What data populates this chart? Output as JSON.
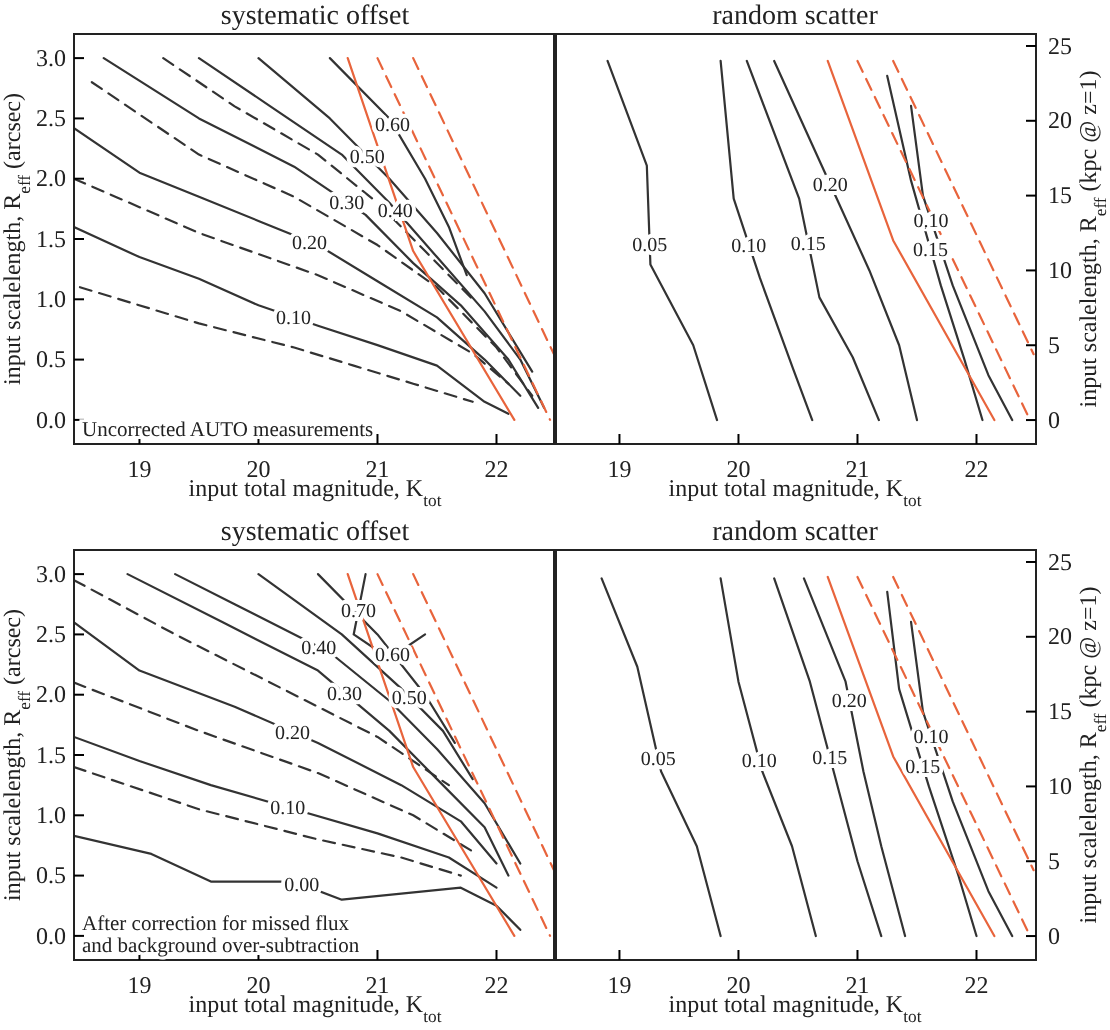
{
  "chart_data": [
    {
      "type": "line",
      "title": "systematic offset",
      "xlabel": "input total magnitude, K$_{tot}$",
      "ylabel": "input scalelength, R$_{eff}$ (arcsec)",
      "xlim": [
        18.45,
        22.5
      ],
      "xticks": [
        19,
        20,
        21,
        22
      ],
      "ylim": [
        -0.2,
        3.2
      ],
      "yticks": [
        {
          "value": 0,
          "label": "0.0"
        },
        {
          "value": 0.5,
          "label": "0.5"
        },
        {
          "value": 1,
          "label": "1.0"
        },
        {
          "value": 1.5,
          "label": "1.5"
        },
        {
          "value": 2,
          "label": "2.0"
        },
        {
          "value": 2.5,
          "label": "2.5"
        },
        {
          "value": 3,
          "label": "3.0"
        }
      ],
      "annotations": [
        "Uncorrected AUTO measurements"
      ],
      "series": [
        {
          "color": "#333333",
          "line_style": "dashed",
          "x": [
            18.5,
            19.5,
            20.3,
            20.8,
            21.3,
            21.8
          ],
          "values": [
            1.1,
            0.8,
            0.6,
            0.45,
            0.3,
            0.15
          ]
        },
        {
          "name": "0.10",
          "color": "#333333",
          "line_style": "solid",
          "x": [
            18.45,
            19.0,
            19.5,
            20.0,
            20.5,
            21.0,
            21.5,
            21.9,
            22.1
          ],
          "values": [
            1.6,
            1.35,
            1.17,
            0.95,
            0.78,
            0.62,
            0.45,
            0.15,
            0.05
          ]
        },
        {
          "color": "#333333",
          "line_style": "dashed",
          "x": [
            18.45,
            19.5,
            20.5,
            21.2,
            21.8,
            22.1
          ],
          "values": [
            2.0,
            1.55,
            1.2,
            0.9,
            0.55,
            0.3
          ]
        },
        {
          "name": "0.20",
          "color": "#333333",
          "line_style": "solid",
          "x": [
            18.45,
            19.0,
            19.5,
            20.0,
            20.5,
            21.0,
            21.5,
            21.9,
            22.2
          ],
          "values": [
            2.42,
            2.05,
            1.85,
            1.65,
            1.45,
            1.15,
            0.85,
            0.5,
            0.2
          ]
        },
        {
          "color": "#333333",
          "line_style": "dashed",
          "x": [
            18.6,
            19.5,
            20.3,
            21.0,
            21.5,
            22.0,
            22.3
          ],
          "values": [
            2.8,
            2.2,
            1.85,
            1.45,
            1.1,
            0.6,
            0.2
          ]
        },
        {
          "name": "0.30",
          "color": "#333333",
          "line_style": "solid",
          "x": [
            18.7,
            19.5,
            20.3,
            20.9,
            21.3,
            21.7,
            22.1,
            22.35
          ],
          "values": [
            3.0,
            2.5,
            2.1,
            1.7,
            1.3,
            0.95,
            0.5,
            0.1
          ]
        },
        {
          "color": "#333333",
          "line_style": "dashed",
          "x": [
            19.2,
            19.8,
            20.5,
            21.0,
            21.4,
            21.8
          ],
          "values": [
            3.0,
            2.6,
            2.2,
            1.8,
            1.4,
            1.0
          ]
        },
        {
          "name": "0.40",
          "color": "#333333",
          "line_style": "solid",
          "x": [
            19.5,
            20.1,
            20.7,
            21.1,
            21.5,
            21.9,
            22.2,
            22.4
          ],
          "values": [
            3.0,
            2.6,
            2.2,
            1.8,
            1.35,
            0.9,
            0.5,
            0.1
          ]
        },
        {
          "name": "0.50",
          "color": "#333333",
          "line_style": "solid",
          "x": [
            20.0,
            20.6,
            21.1,
            21.5,
            21.9,
            22.3
          ],
          "values": [
            3.0,
            2.5,
            2.0,
            1.55,
            1.05,
            0.4
          ]
        },
        {
          "name": "0.60",
          "color": "#333333",
          "line_style": "solid",
          "x": [
            20.6,
            21.1,
            21.4,
            21.6,
            21.75
          ],
          "values": [
            3.0,
            2.5,
            2.0,
            1.6,
            1.2
          ]
        },
        {
          "color": "#e8643c",
          "line_style": "solid",
          "x": [
            20.75,
            21.3,
            22.15
          ],
          "values": [
            3.0,
            1.4,
            0.0
          ]
        },
        {
          "color": "#e8643c",
          "line_style": "dashed",
          "x": [
            21.0,
            22.45
          ],
          "values": [
            3.0,
            0.0
          ]
        },
        {
          "color": "#e8643c",
          "line_style": "dashed",
          "x": [
            21.3,
            22.48
          ],
          "values": [
            3.0,
            0.55
          ]
        }
      ]
    },
    {
      "type": "line",
      "title": "random scatter",
      "xlabel": "input total magnitude, K$_{tot}$",
      "y2label": "input scalelength, R$_{eff}$ (kpc @ z=1)",
      "xlim": [
        18.45,
        22.5
      ],
      "xticks": [
        19,
        20,
        21,
        22
      ],
      "y2lim": [
        -1.6,
        25.8
      ],
      "y2ticks": [
        0,
        5,
        10,
        15,
        20,
        25
      ],
      "series": [
        {
          "name": "0.05",
          "color": "#333333",
          "line_style": "solid",
          "axis": "y2",
          "x": [
            18.9,
            19.23,
            19.26,
            19.62,
            19.82
          ],
          "values": [
            24,
            17,
            10.4,
            5,
            0
          ]
        },
        {
          "name": "0.10",
          "color": "#333333",
          "line_style": "solid",
          "axis": "y2",
          "x": [
            19.85,
            19.96,
            20.18,
            20.46,
            20.62
          ],
          "values": [
            24,
            14.8,
            9.5,
            3.4,
            0
          ]
        },
        {
          "name": "0.15",
          "color": "#333333",
          "line_style": "solid",
          "axis": "y2",
          "x": [
            20.07,
            20.51,
            20.68,
            20.96,
            21.18
          ],
          "values": [
            24,
            14.8,
            8.2,
            4.2,
            0
          ]
        },
        {
          "name": "0.20",
          "color": "#333333",
          "line_style": "solid",
          "axis": "y2",
          "x": [
            20.3,
            20.7,
            21.1,
            21.35,
            21.5
          ],
          "values": [
            24,
            17,
            10,
            5,
            0
          ]
        },
        {
          "name": "0.15",
          "color": "#333333",
          "line_style": "solid",
          "axis": "y2",
          "x": [
            21.25,
            21.45,
            21.7,
            21.9,
            22.05
          ],
          "values": [
            23,
            16,
            9,
            4,
            0
          ]
        },
        {
          "name": "0.10",
          "color": "#333333",
          "line_style": "solid",
          "axis": "y2",
          "x": [
            21.45,
            21.55,
            21.8,
            22.1,
            22.3
          ],
          "values": [
            21,
            15,
            9,
            3,
            0
          ]
        },
        {
          "color": "#e8643c",
          "line_style": "solid",
          "axis": "y2",
          "x": [
            20.75,
            21.3,
            22.15
          ],
          "values": [
            24,
            12,
            0
          ]
        },
        {
          "color": "#e8643c",
          "line_style": "dashed",
          "axis": "y2",
          "x": [
            21.0,
            22.45
          ],
          "values": [
            24,
            0
          ]
        },
        {
          "color": "#e8643c",
          "line_style": "dashed",
          "axis": "y2",
          "x": [
            21.3,
            22.48
          ],
          "values": [
            24,
            4.4
          ]
        }
      ]
    },
    {
      "type": "line",
      "title": "systematic offset",
      "xlabel": "input total magnitude, K$_{tot}$",
      "ylabel": "input scalelength, R$_{eff}$ (arcsec)",
      "xlim": [
        18.45,
        22.5
      ],
      "xticks": [
        19,
        20,
        21,
        22
      ],
      "ylim": [
        -0.2,
        3.2
      ],
      "yticks": [
        {
          "value": 0,
          "label": "0.0"
        },
        {
          "value": 0.5,
          "label": "0.5"
        },
        {
          "value": 1,
          "label": "1.0"
        },
        {
          "value": 1.5,
          "label": "1.5"
        },
        {
          "value": 2,
          "label": "2.0"
        },
        {
          "value": 2.5,
          "label": "2.5"
        },
        {
          "value": 3,
          "label": "3.0"
        }
      ],
      "annotations": [
        "After correction for missed flux\nand background over-subtraction"
      ],
      "series": [
        {
          "name": "0.00",
          "color": "#333333",
          "line_style": "solid",
          "x": [
            18.45,
            19.1,
            19.6,
            20.3,
            20.7,
            21.2,
            21.7,
            22.0,
            22.2
          ],
          "values": [
            0.83,
            0.68,
            0.45,
            0.45,
            0.3,
            0.35,
            0.4,
            0.25,
            0.05
          ]
        },
        {
          "color": "#333333",
          "line_style": "dashed",
          "x": [
            18.45,
            19.5,
            20.5,
            21.2,
            21.7
          ],
          "values": [
            1.4,
            1.05,
            0.8,
            0.65,
            0.5
          ]
        },
        {
          "name": "0.10",
          "color": "#333333",
          "line_style": "solid",
          "x": [
            18.45,
            19.0,
            19.6,
            20.3,
            21.0,
            21.6,
            22.0
          ],
          "values": [
            1.65,
            1.45,
            1.25,
            1.05,
            0.85,
            0.65,
            0.4
          ]
        },
        {
          "color": "#333333",
          "line_style": "dashed",
          "x": [
            18.45,
            19.5,
            20.5,
            21.3,
            21.8
          ],
          "values": [
            2.1,
            1.7,
            1.35,
            1.0,
            0.7
          ]
        },
        {
          "name": "0.20",
          "color": "#333333",
          "line_style": "solid",
          "x": [
            18.45,
            19.0,
            19.8,
            20.5,
            21.2,
            21.7,
            22.0
          ],
          "values": [
            2.6,
            2.2,
            1.9,
            1.6,
            1.25,
            0.95,
            0.6
          ]
        },
        {
          "color": "#333333",
          "line_style": "dashed",
          "x": [
            18.45,
            19.3,
            20.2,
            21.0,
            21.6
          ],
          "values": [
            2.95,
            2.5,
            2.05,
            1.65,
            1.25
          ]
        },
        {
          "name": "0.30",
          "color": "#333333",
          "line_style": "solid",
          "x": [
            18.9,
            19.7,
            20.5,
            21.1,
            21.5,
            21.9,
            22.1
          ],
          "values": [
            3.0,
            2.6,
            2.2,
            1.7,
            1.3,
            0.9,
            0.5
          ]
        },
        {
          "name": "0.40",
          "color": "#333333",
          "line_style": "solid",
          "x": [
            19.3,
            19.8,
            20.6,
            21.1,
            21.5,
            21.9,
            22.2
          ],
          "values": [
            3.0,
            2.75,
            2.35,
            1.95,
            1.55,
            1.1,
            0.6
          ]
        },
        {
          "name": "0.50",
          "color": "#333333",
          "line_style": "solid",
          "x": [
            20.0,
            20.7,
            21.2,
            21.55,
            21.8
          ],
          "values": [
            3.0,
            2.5,
            2.05,
            1.7,
            1.3
          ]
        },
        {
          "name": "0.60",
          "color": "#333333",
          "line_style": "solid",
          "x": [
            20.5,
            21.0,
            21.4,
            21.65
          ],
          "values": [
            3.0,
            2.5,
            2.0,
            1.6
          ]
        },
        {
          "name": "0.70",
          "color": "#333333",
          "line_style": "solid",
          "x": [
            20.9,
            20.8,
            21.1,
            21.4
          ],
          "values": [
            3.0,
            2.5,
            2.3,
            2.5
          ]
        },
        {
          "color": "#e8643c",
          "line_style": "solid",
          "x": [
            20.75,
            21.3,
            22.15
          ],
          "values": [
            3.0,
            1.4,
            0.0
          ]
        },
        {
          "color": "#e8643c",
          "line_style": "dashed",
          "x": [
            21.0,
            22.45
          ],
          "values": [
            3.0,
            0.0
          ]
        },
        {
          "color": "#e8643c",
          "line_style": "dashed",
          "x": [
            21.3,
            22.48
          ],
          "values": [
            3.0,
            0.55
          ]
        }
      ]
    },
    {
      "type": "line",
      "title": "random scatter",
      "xlabel": "input total magnitude, K$_{tot}$",
      "y2label": "input scalelength, R$_{eff}$ (kpc @ z=1)",
      "xlim": [
        18.45,
        22.5
      ],
      "xticks": [
        19,
        20,
        21,
        22
      ],
      "y2lim": [
        -1.6,
        25.8
      ],
      "y2ticks": [
        0,
        5,
        10,
        15,
        20,
        25
      ],
      "series": [
        {
          "name": "0.05",
          "color": "#333333",
          "line_style": "solid",
          "axis": "y2",
          "x": [
            18.85,
            19.15,
            19.35,
            19.65,
            19.85
          ],
          "values": [
            23.9,
            18,
            11,
            6,
            0
          ]
        },
        {
          "name": "0.10",
          "color": "#333333",
          "line_style": "solid",
          "axis": "y2",
          "x": [
            19.85,
            20.0,
            20.2,
            20.45,
            20.65
          ],
          "values": [
            23.9,
            17,
            11,
            6,
            0
          ]
        },
        {
          "name": "0.15",
          "color": "#333333",
          "line_style": "solid",
          "axis": "y2",
          "x": [
            20.3,
            20.6,
            20.8,
            21.0,
            21.2
          ],
          "values": [
            23.9,
            17,
            11,
            5,
            0
          ]
        },
        {
          "name": "0.20",
          "color": "#333333",
          "line_style": "solid",
          "axis": "y2",
          "x": [
            20.55,
            20.9,
            21.05,
            21.2,
            21.4
          ],
          "values": [
            23.9,
            17,
            11,
            6,
            0
          ]
        },
        {
          "name": "0.15",
          "color": "#333333",
          "line_style": "solid",
          "axis": "y2",
          "x": [
            21.25,
            21.35,
            21.6,
            21.85,
            22.0
          ],
          "values": [
            23,
            16.5,
            10,
            4,
            0
          ]
        },
        {
          "name": "0.10",
          "color": "#333333",
          "line_style": "solid",
          "axis": "y2",
          "x": [
            21.45,
            21.55,
            21.8,
            22.1,
            22.3
          ],
          "values": [
            21,
            15,
            9,
            3,
            0
          ]
        },
        {
          "color": "#e8643c",
          "line_style": "solid",
          "axis": "y2",
          "x": [
            20.75,
            21.3,
            22.15
          ],
          "values": [
            24,
            12,
            0
          ]
        },
        {
          "color": "#e8643c",
          "line_style": "dashed",
          "axis": "y2",
          "x": [
            21.0,
            22.45
          ],
          "values": [
            24,
            0
          ]
        },
        {
          "color": "#e8643c",
          "line_style": "dashed",
          "axis": "y2",
          "x": [
            21.3,
            22.48
          ],
          "values": [
            24,
            4.4
          ]
        }
      ]
    }
  ]
}
